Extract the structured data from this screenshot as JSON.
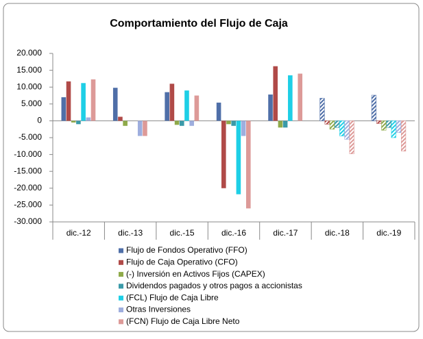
{
  "chart_data": {
    "type": "bar",
    "title": "Comportamiento del Flujo de Caja",
    "categories": [
      "dic.-12",
      "dic.-13",
      "dic.-15",
      "dic.-16",
      "dic.-17",
      "dic.-18",
      "dic.-19"
    ],
    "hatched": [
      false,
      false,
      false,
      false,
      false,
      true,
      true
    ],
    "series": [
      {
        "name": "Flujo de Fondos Operativo (FFO)",
        "color": "#4f6fa8",
        "values": [
          7000,
          9800,
          8500,
          5400,
          7800,
          6700,
          7600
        ]
      },
      {
        "name": "Flujo de Caja Operativo (CFO)",
        "color": "#b04a48",
        "values": [
          11700,
          1200,
          11000,
          -20000,
          16200,
          -1000,
          -800
        ]
      },
      {
        "name": "(-) Inversión en Activos Fijos (CAPEX)",
        "color": "#8faa4a",
        "values": [
          -500,
          -1500,
          -1200,
          -1000,
          -2000,
          -2500,
          -2800
        ]
      },
      {
        "name": "Dividendos pagados y otros pagos a accionistas",
        "color": "#3a9aa8",
        "values": [
          -1000,
          0,
          -1500,
          -1500,
          -2000,
          -2000,
          -2000
        ]
      },
      {
        "name": "(FCL) Flujo de Caja Libre",
        "color": "#1ecfe6",
        "values": [
          11200,
          0,
          9000,
          -21800,
          13500,
          -4500,
          -5000
        ]
      },
      {
        "name": "Otras Inversiones",
        "color": "#9eaede",
        "values": [
          1000,
          -4500,
          -1500,
          -4500,
          0,
          -5500,
          -3500
        ]
      },
      {
        "name": "(FCN) Flujo de Caja Libre Neto",
        "color": "#dd9a98",
        "values": [
          12300,
          -4500,
          7500,
          -26000,
          14000,
          -9800,
          -9000
        ]
      }
    ],
    "ylim": [
      -30000,
      20000
    ],
    "yticks": [
      {
        "value": 20000,
        "label": "20.000"
      },
      {
        "value": 15000,
        "label": "15.000"
      },
      {
        "value": 10000,
        "label": "10.000"
      },
      {
        "value": 5000,
        "label": "5.000"
      },
      0,
      {
        "value": -5000,
        "label": "-5.000"
      },
      {
        "value": -10000,
        "label": "-10.000"
      },
      {
        "value": -15000,
        "label": "-15.000"
      },
      {
        "value": -20000,
        "label": "-20.000"
      },
      {
        "value": -25000,
        "label": "-25.000"
      },
      {
        "value": -30000,
        "label": "-30.000"
      }
    ]
  }
}
